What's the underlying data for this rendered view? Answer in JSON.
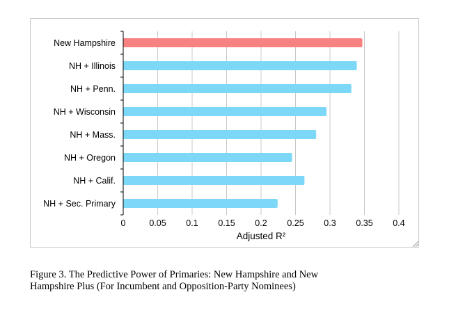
{
  "chart_data": {
    "type": "bar",
    "orientation": "horizontal",
    "categories": [
      "New Hampshire",
      "NH + Illinois",
      "NH + Penn.",
      "NH + Wisconsin",
      "NH + Mass.",
      "NH + Oregon",
      "NH + Calif.",
      "NH + Sec. Primary"
    ],
    "values": [
      0.347,
      0.339,
      0.331,
      0.295,
      0.28,
      0.245,
      0.263,
      0.224
    ],
    "highlight_index": 0,
    "xlabel": "Adjusted R²",
    "ylabel": "",
    "xlim": [
      0,
      0.4
    ],
    "xticks": [
      "0",
      "0.05",
      "0.1",
      "0.15",
      "0.2",
      "0.25",
      "0.3",
      "0.35",
      "0.4"
    ],
    "grid": "vertical",
    "colors": {
      "highlight": "#f88282",
      "bar": "#7dd8f7",
      "grid": "#c8c8c8",
      "axis": "#000000"
    }
  },
  "caption": {
    "line1": "Figure 3.  The Predictive Power of Primaries: New Hampshire and New",
    "line2": "Hampshire Plus (For Incumbent and Opposition-Party Nominees)"
  }
}
